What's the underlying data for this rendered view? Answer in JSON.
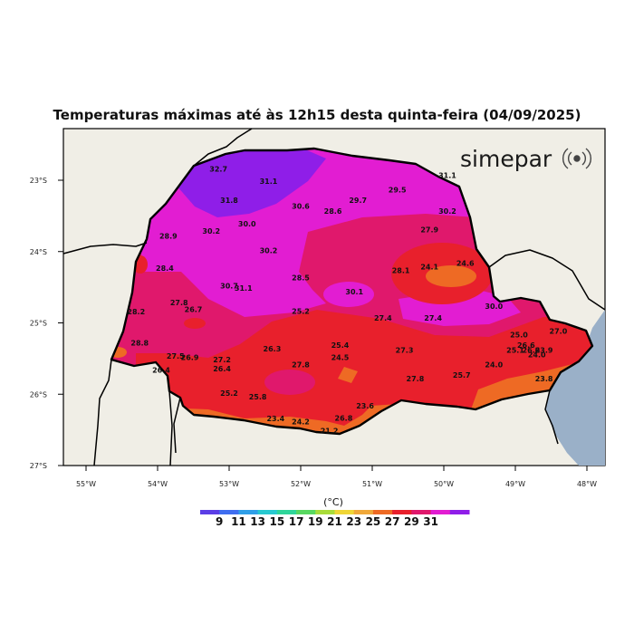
{
  "title": "Temperaturas máximas até às 12h15 desta quinta-feira (04/09/2025)",
  "logo": {
    "text": "simepar",
    "icon": "radio-waves-icon"
  },
  "colorbar": {
    "unit": "(°C)",
    "labels": [
      "9",
      "11",
      "13",
      "15",
      "17",
      "19",
      "21",
      "23",
      "25",
      "27",
      "29",
      "31"
    ],
    "colors": [
      "#5b3ee6",
      "#3f6ef0",
      "#2f9fe8",
      "#27c9d0",
      "#2fd69a",
      "#58d860",
      "#a9dc3a",
      "#f0d636",
      "#f0a83a",
      "#ee6a24",
      "#e8202c",
      "#e0186c",
      "#e21dd2",
      "#8f1ee8"
    ]
  },
  "axes": {
    "lat_labels": [
      "23°S",
      "24°S",
      "25°S",
      "26°S",
      "27°S"
    ],
    "lon_labels": [
      "55°W",
      "54°W",
      "53°W",
      "52°W",
      "51°W",
      "50°W",
      "49°W",
      "48°W"
    ]
  },
  "stations": [
    {
      "v": "32.7",
      "lon": -53.15,
      "lat": -22.88
    },
    {
      "v": "31.1",
      "lon": -52.45,
      "lat": -23.05
    },
    {
      "v": "31.1",
      "lon": -49.95,
      "lat": -22.97
    },
    {
      "v": "29.5",
      "lon": -50.65,
      "lat": -23.17
    },
    {
      "v": "31.8",
      "lon": -53.0,
      "lat": -23.32
    },
    {
      "v": "30.6",
      "lon": -52.0,
      "lat": -23.4
    },
    {
      "v": "28.6",
      "lon": -51.55,
      "lat": -23.47
    },
    {
      "v": "29.7",
      "lon": -51.2,
      "lat": -23.32
    },
    {
      "v": "30.2",
      "lon": -49.95,
      "lat": -23.47
    },
    {
      "v": "30.2",
      "lon": -53.25,
      "lat": -23.75
    },
    {
      "v": "30.0",
      "lon": -52.75,
      "lat": -23.65
    },
    {
      "v": "28.9",
      "lon": -53.85,
      "lat": -23.82
    },
    {
      "v": "27.9",
      "lon": -50.2,
      "lat": -23.73
    },
    {
      "v": "30.2",
      "lon": -52.45,
      "lat": -24.02
    },
    {
      "v": "28.4",
      "lon": -53.9,
      "lat": -24.27
    },
    {
      "v": "28.1",
      "lon": -50.6,
      "lat": -24.3
    },
    {
      "v": "24.1",
      "lon": -50.2,
      "lat": -24.25
    },
    {
      "v": "24.6",
      "lon": -49.7,
      "lat": -24.2
    },
    {
      "v": "28.5",
      "lon": -52.0,
      "lat": -24.4
    },
    {
      "v": "30.7",
      "lon": -53.0,
      "lat": -24.52
    },
    {
      "v": "31.1",
      "lon": -52.8,
      "lat": -24.55
    },
    {
      "v": "30.1",
      "lon": -51.25,
      "lat": -24.6
    },
    {
      "v": "27.8",
      "lon": -53.7,
      "lat": -24.75
    },
    {
      "v": "26.7",
      "lon": -53.5,
      "lat": -24.85
    },
    {
      "v": "28.2",
      "lon": -54.3,
      "lat": -24.88
    },
    {
      "v": "25.2",
      "lon": -52.0,
      "lat": -24.87
    },
    {
      "v": "30.0",
      "lon": -49.3,
      "lat": -24.8
    },
    {
      "v": "27.4",
      "lon": -50.85,
      "lat": -24.97
    },
    {
      "v": "27.4",
      "lon": -50.15,
      "lat": -24.97
    },
    {
      "v": "28.8",
      "lon": -54.25,
      "lat": -25.32
    },
    {
      "v": "25.4",
      "lon": -51.45,
      "lat": -25.35
    },
    {
      "v": "26.3",
      "lon": -52.4,
      "lat": -25.4
    },
    {
      "v": "27.3",
      "lon": -50.55,
      "lat": -25.42
    },
    {
      "v": "27.5",
      "lon": -53.75,
      "lat": -25.5
    },
    {
      "v": "26.9",
      "lon": -53.55,
      "lat": -25.52
    },
    {
      "v": "27.2",
      "lon": -53.1,
      "lat": -25.55
    },
    {
      "v": "24.5",
      "lon": -51.45,
      "lat": -25.52
    },
    {
      "v": "25.0",
      "lon": -48.95,
      "lat": -25.2
    },
    {
      "v": "26.6",
      "lon": -48.85,
      "lat": -25.35
    },
    {
      "v": "27.0",
      "lon": -48.4,
      "lat": -25.15
    },
    {
      "v": "25.1",
      "lon": -49.0,
      "lat": -25.42
    },
    {
      "v": "26.6",
      "lon": -48.78,
      "lat": -25.42
    },
    {
      "v": "23.9",
      "lon": -48.6,
      "lat": -25.42
    },
    {
      "v": "24.0",
      "lon": -48.7,
      "lat": -25.48
    },
    {
      "v": "26.4",
      "lon": -53.95,
      "lat": -25.7
    },
    {
      "v": "26.4",
      "lon": -53.1,
      "lat": -25.68
    },
    {
      "v": "27.8",
      "lon": -52.0,
      "lat": -25.62
    },
    {
      "v": "24.0",
      "lon": -49.3,
      "lat": -25.62
    },
    {
      "v": "25.7",
      "lon": -49.75,
      "lat": -25.77
    },
    {
      "v": "27.8",
      "lon": -50.4,
      "lat": -25.82
    },
    {
      "v": "23.8",
      "lon": -48.6,
      "lat": -25.82
    },
    {
      "v": "25.2",
      "lon": -53.0,
      "lat": -26.02
    },
    {
      "v": "25.8",
      "lon": -52.6,
      "lat": -26.07
    },
    {
      "v": "23.6",
      "lon": -51.1,
      "lat": -26.2
    },
    {
      "v": "23.4",
      "lon": -52.35,
      "lat": -26.38
    },
    {
      "v": "24.2",
      "lon": -52.0,
      "lat": -26.42
    },
    {
      "v": "26.8",
      "lon": -51.4,
      "lat": -26.37
    },
    {
      "v": "21.2",
      "lon": -51.6,
      "lat": -26.55
    }
  ]
}
